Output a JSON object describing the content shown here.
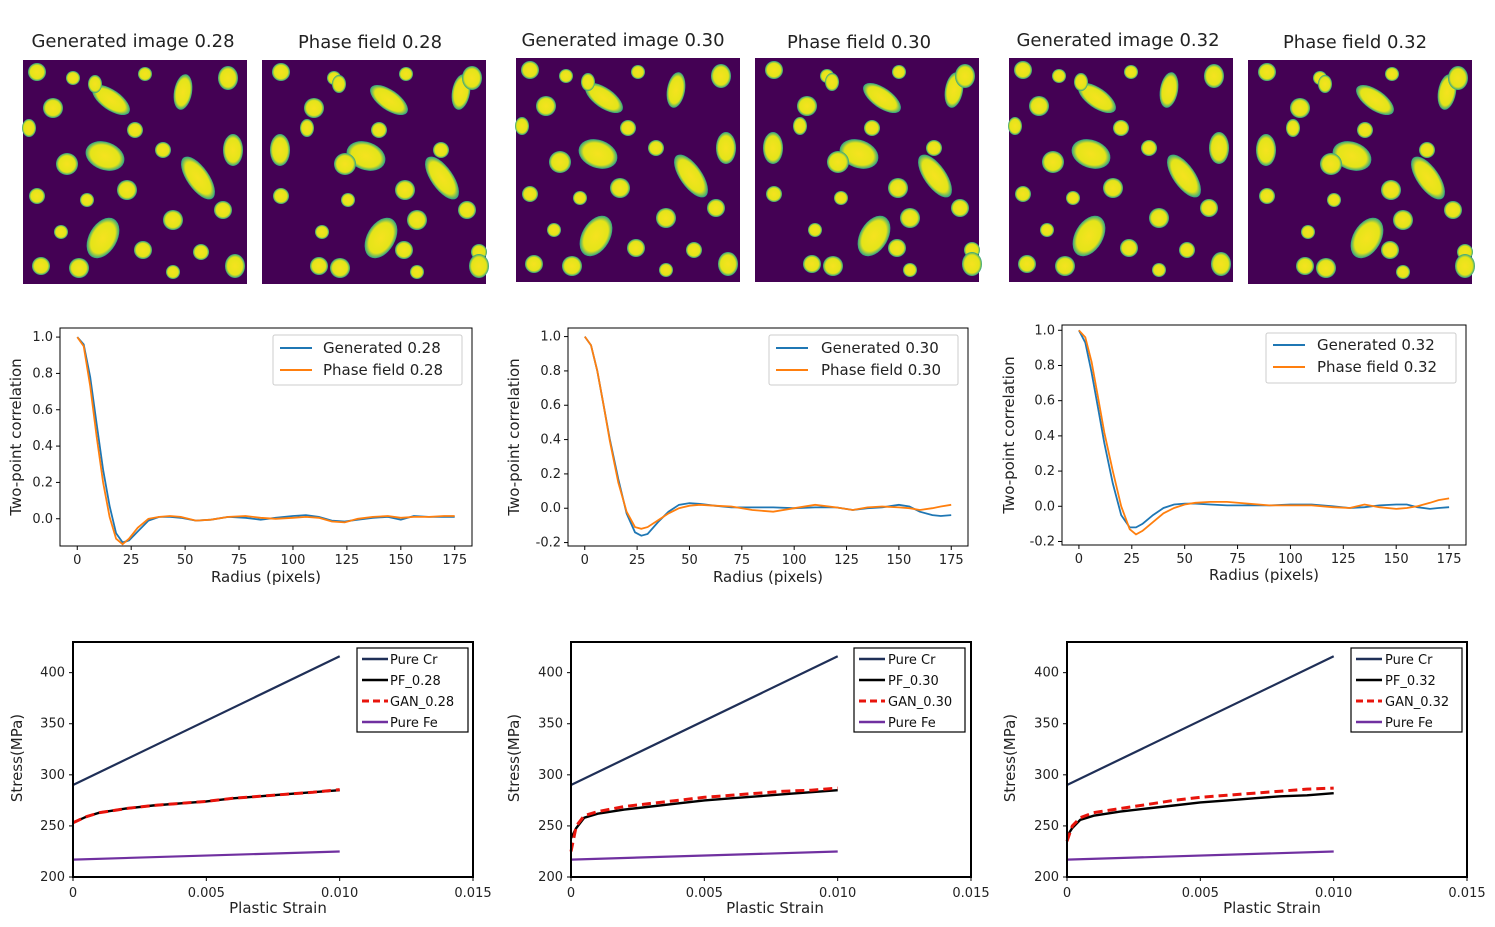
{
  "columns": [
    {
      "image_titles": [
        "Generated image 0.28",
        "Phase field 0.28"
      ],
      "corr": {
        "xlabel": "Radius (pixels)",
        "ylabel": "Two-point correlation",
        "ylim": [
          -0.15,
          1.05
        ],
        "xlim": [
          -8,
          183
        ],
        "yticks": [
          "1.0",
          "0.8",
          "0.6",
          "0.4",
          "0.2",
          "0.0"
        ],
        "xticks": [
          "0",
          "25",
          "50",
          "75",
          "100",
          "125",
          "150",
          "175"
        ],
        "legend": [
          "Generated 0.28",
          "Phase field 0.28"
        ]
      },
      "stress": {
        "xlabel": "Plastic Strain",
        "ylabel": "Stress(MPa)",
        "yticks": [
          "400",
          "350",
          "300",
          "250",
          "200"
        ],
        "xticks": [
          "0",
          "0.005",
          "0.010",
          "0.015"
        ],
        "legend": [
          "Pure Cr",
          "PF_0.28",
          "GAN_0.28",
          "Pure Fe"
        ]
      }
    },
    {
      "image_titles": [
        "Generated image 0.30",
        "Phase field 0.30"
      ],
      "corr": {
        "xlabel": "Radius (pixels)",
        "ylabel": "Two-point correlation",
        "ylim": [
          -0.22,
          1.05
        ],
        "xlim": [
          -8,
          183
        ],
        "yticks": [
          "1.0",
          "0.8",
          "0.6",
          "0.4",
          "0.2",
          "0.0",
          "-0.2"
        ],
        "xticks": [
          "0",
          "25",
          "50",
          "75",
          "100",
          "125",
          "150",
          "175"
        ],
        "legend": [
          "Generated 0.30",
          "Phase field 0.30"
        ]
      },
      "stress": {
        "xlabel": "Plastic Strain",
        "ylabel": "Stress(MPa)",
        "yticks": [
          "400",
          "350",
          "300",
          "250",
          "200"
        ],
        "xticks": [
          "0",
          "0.005",
          "0.010",
          "0.015"
        ],
        "legend": [
          "Pure Cr",
          "PF_0.30",
          "GAN_0.30",
          "Pure Fe"
        ]
      }
    },
    {
      "image_titles": [
        "Generated image 0.32",
        "Phase field 0.32"
      ],
      "corr": {
        "xlabel": "Radius (pixels)",
        "ylabel": "Two-point correlation",
        "ylim": [
          -0.22,
          1.03
        ],
        "xlim": [
          -8,
          183
        ],
        "yticks": [
          "1.0",
          "0.8",
          "0.6",
          "0.4",
          "0.2",
          "0.0",
          "-0.2"
        ],
        "xticks": [
          "0",
          "25",
          "50",
          "75",
          "100",
          "125",
          "150",
          "175"
        ],
        "legend": [
          "Generated 0.32",
          "Phase field 0.32"
        ]
      },
      "stress": {
        "xlabel": "Plastic Strain",
        "ylabel": "Stress(MPa)",
        "yticks": [
          "400",
          "350",
          "300",
          "250",
          "200"
        ],
        "xticks": [
          "0",
          "0.005",
          "0.010",
          "0.015"
        ],
        "legend": [
          "Pure Cr",
          "PF_0.32",
          "GAN_0.32",
          "Pure Fe"
        ]
      }
    }
  ],
  "chart_data": [
    {
      "type": "line",
      "title": "",
      "xlabel": "Radius (pixels)",
      "ylabel": "Two-point correlation",
      "ylim": [
        -0.15,
        1.05
      ],
      "series": [
        {
          "name": "Generated 0.28",
          "color": "#1f77b4",
          "x": [
            0,
            3,
            6,
            9,
            12,
            15,
            18,
            21,
            24,
            28,
            33,
            38,
            43,
            48,
            55,
            62,
            70,
            78,
            85,
            92,
            100,
            106,
            112,
            118,
            124,
            130,
            137,
            144,
            150,
            156,
            163,
            170,
            175
          ],
          "y": [
            1.0,
            0.96,
            0.78,
            0.52,
            0.27,
            0.07,
            -0.08,
            -0.13,
            -0.12,
            -0.07,
            -0.01,
            0.01,
            0.01,
            0.005,
            -0.01,
            -0.005,
            0.01,
            0.005,
            -0.005,
            0.005,
            0.015,
            0.02,
            0.01,
            -0.01,
            -0.015,
            -0.005,
            0.005,
            0.01,
            -0.005,
            0.015,
            0.01,
            0.01,
            0.01
          ]
        },
        {
          "name": "Phase field 0.28",
          "color": "#ff7f0e",
          "x": [
            0,
            3,
            6,
            9,
            12,
            15,
            18,
            21,
            24,
            28,
            33,
            38,
            43,
            48,
            55,
            62,
            70,
            78,
            85,
            92,
            100,
            106,
            112,
            118,
            124,
            130,
            137,
            144,
            150,
            156,
            163,
            170,
            175
          ],
          "y": [
            1.0,
            0.95,
            0.73,
            0.45,
            0.2,
            0.01,
            -0.11,
            -0.14,
            -0.11,
            -0.05,
            0.0,
            0.01,
            0.015,
            0.01,
            -0.01,
            -0.005,
            0.01,
            0.015,
            0.005,
            0.0,
            0.005,
            0.01,
            0.005,
            -0.015,
            -0.02,
            0.0,
            0.01,
            0.015,
            0.005,
            0.01,
            0.01,
            0.015,
            0.015
          ]
        }
      ]
    },
    {
      "type": "line",
      "title": "",
      "xlabel": "Radius (pixels)",
      "ylabel": "Two-point correlation",
      "ylim": [
        -0.22,
        1.05
      ],
      "series": [
        {
          "name": "Generated 0.30",
          "color": "#1f77b4",
          "x": [
            0,
            3,
            6,
            9,
            12,
            16,
            20,
            24,
            27,
            30,
            35,
            40,
            45,
            50,
            55,
            62,
            70,
            80,
            90,
            100,
            110,
            120,
            128,
            135,
            142,
            150,
            155,
            160,
            166,
            170,
            175
          ],
          "y": [
            1.0,
            0.95,
            0.8,
            0.6,
            0.4,
            0.17,
            -0.03,
            -0.14,
            -0.16,
            -0.15,
            -0.08,
            -0.02,
            0.02,
            0.03,
            0.025,
            0.015,
            0.005,
            0.005,
            0.005,
            0.0,
            0.005,
            0.005,
            -0.01,
            0.0,
            0.005,
            0.02,
            0.01,
            -0.02,
            -0.04,
            -0.045,
            -0.04
          ]
        },
        {
          "name": "Phase field 0.30",
          "color": "#ff7f0e",
          "x": [
            0,
            3,
            6,
            9,
            12,
            16,
            20,
            24,
            27,
            30,
            35,
            40,
            45,
            50,
            55,
            62,
            70,
            80,
            90,
            100,
            110,
            120,
            128,
            135,
            142,
            150,
            155,
            160,
            166,
            170,
            175
          ],
          "y": [
            1.0,
            0.95,
            0.8,
            0.6,
            0.39,
            0.15,
            -0.02,
            -0.11,
            -0.12,
            -0.11,
            -0.07,
            -0.03,
            0.0,
            0.015,
            0.02,
            0.015,
            0.01,
            -0.01,
            -0.02,
            0.0,
            0.02,
            0.005,
            -0.01,
            0.005,
            0.01,
            0.005,
            0.0,
            -0.01,
            0.0,
            0.01,
            0.02
          ]
        }
      ]
    },
    {
      "type": "line",
      "title": "",
      "xlabel": "Radius (pixels)",
      "ylabel": "Two-point correlation",
      "ylim": [
        -0.22,
        1.03
      ],
      "series": [
        {
          "name": "Generated 0.32",
          "color": "#1f77b4",
          "x": [
            0,
            3,
            6,
            9,
            12,
            16,
            20,
            24,
            27,
            30,
            35,
            40,
            45,
            50,
            55,
            62,
            70,
            80,
            90,
            100,
            110,
            120,
            128,
            135,
            142,
            150,
            155,
            160,
            166,
            170,
            175
          ],
          "y": [
            1.0,
            0.93,
            0.76,
            0.56,
            0.36,
            0.13,
            -0.05,
            -0.12,
            -0.12,
            -0.1,
            -0.05,
            -0.01,
            0.01,
            0.015,
            0.015,
            0.01,
            0.005,
            0.005,
            0.005,
            0.01,
            0.01,
            0.0,
            -0.01,
            -0.005,
            0.005,
            0.01,
            0.01,
            -0.005,
            -0.015,
            -0.01,
            -0.005
          ]
        },
        {
          "name": "Phase field 0.32",
          "color": "#ff7f0e",
          "x": [
            0,
            3,
            6,
            9,
            12,
            16,
            20,
            24,
            27,
            30,
            35,
            40,
            45,
            50,
            55,
            62,
            70,
            80,
            90,
            100,
            110,
            120,
            128,
            135,
            142,
            150,
            155,
            160,
            166,
            170,
            175
          ],
          "y": [
            1.0,
            0.96,
            0.82,
            0.62,
            0.42,
            0.2,
            0.0,
            -0.13,
            -0.16,
            -0.14,
            -0.09,
            -0.04,
            -0.01,
            0.01,
            0.02,
            0.025,
            0.025,
            0.015,
            0.005,
            0.005,
            0.005,
            -0.005,
            -0.01,
            0.01,
            -0.005,
            -0.015,
            -0.01,
            0.0,
            0.02,
            0.035,
            0.045
          ]
        }
      ]
    },
    {
      "type": "line",
      "title": "",
      "xlabel": "Plastic Strain",
      "ylabel": "Stress(MPa)",
      "xlim": [
        0,
        0.015
      ],
      "ylim": [
        200,
        430
      ],
      "series": [
        {
          "name": "Pure Cr",
          "color": "#1f2f57",
          "x": [
            0,
            0.01
          ],
          "y": [
            290,
            416
          ]
        },
        {
          "name": "PF_0.28",
          "color": "#000000",
          "x": [
            0,
            0.0005,
            0.001,
            0.0015,
            0.002,
            0.003,
            0.004,
            0.005,
            0.006,
            0.007,
            0.008,
            0.009,
            0.01
          ],
          "y": [
            253,
            259,
            263,
            265,
            267,
            270,
            272,
            274,
            277,
            279,
            281,
            283,
            285
          ]
        },
        {
          "name": "GAN_0.28",
          "color": "#e8140c",
          "dashed": true,
          "x": [
            0,
            0.0005,
            0.001,
            0.0015,
            0.002,
            0.003,
            0.004,
            0.005,
            0.006,
            0.007,
            0.008,
            0.009,
            0.01
          ],
          "y": [
            253,
            259,
            263,
            265,
            267,
            270,
            272,
            274,
            277,
            279,
            281,
            283,
            285.5
          ]
        },
        {
          "name": "Pure Fe",
          "color": "#7030a0",
          "x": [
            0,
            0.01
          ],
          "y": [
            217,
            225
          ]
        }
      ]
    },
    {
      "type": "line",
      "title": "",
      "xlabel": "Plastic Strain",
      "ylabel": "Stress(MPa)",
      "xlim": [
        0,
        0.015
      ],
      "ylim": [
        200,
        430
      ],
      "series": [
        {
          "name": "Pure Cr",
          "color": "#1f2f57",
          "x": [
            0,
            0.01
          ],
          "y": [
            290,
            416
          ]
        },
        {
          "name": "PF_0.30",
          "color": "#000000",
          "x": [
            0,
            0.0002,
            0.0005,
            0.001,
            0.002,
            0.003,
            0.004,
            0.005,
            0.006,
            0.007,
            0.008,
            0.009,
            0.01
          ],
          "y": [
            238,
            248,
            258,
            262,
            266,
            269,
            272,
            275,
            277,
            279,
            281,
            283,
            285
          ]
        },
        {
          "name": "GAN_0.30",
          "color": "#e8140c",
          "dashed": true,
          "x": [
            0,
            0.0002,
            0.0005,
            0.001,
            0.002,
            0.003,
            0.004,
            0.005,
            0.006,
            0.007,
            0.008,
            0.009,
            0.01
          ],
          "y": [
            225,
            250,
            260,
            264,
            269,
            272,
            275,
            278,
            280,
            282,
            284,
            285,
            287
          ]
        },
        {
          "name": "Pure Fe",
          "color": "#7030a0",
          "x": [
            0,
            0.01
          ],
          "y": [
            217,
            225
          ]
        }
      ]
    },
    {
      "type": "line",
      "title": "",
      "xlabel": "Plastic Strain",
      "ylabel": "Stress(MPa)",
      "xlim": [
        0,
        0.015
      ],
      "ylim": [
        200,
        430
      ],
      "series": [
        {
          "name": "Pure Cr",
          "color": "#1f2f57",
          "x": [
            0,
            0.01
          ],
          "y": [
            290,
            416
          ]
        },
        {
          "name": "PF_0.32",
          "color": "#000000",
          "x": [
            0,
            0.0002,
            0.0005,
            0.001,
            0.002,
            0.003,
            0.004,
            0.005,
            0.006,
            0.007,
            0.008,
            0.009,
            0.01
          ],
          "y": [
            240,
            248,
            256,
            260,
            264,
            267,
            270,
            273,
            275,
            277,
            279,
            280,
            282
          ]
        },
        {
          "name": "GAN_0.32",
          "color": "#e8140c",
          "dashed": true,
          "x": [
            0,
            0.0002,
            0.0005,
            0.001,
            0.002,
            0.003,
            0.004,
            0.005,
            0.006,
            0.007,
            0.008,
            0.009,
            0.01
          ],
          "y": [
            235,
            250,
            258,
            263,
            267,
            271,
            275,
            278,
            280,
            282,
            284,
            286,
            287
          ]
        },
        {
          "name": "Pure Fe",
          "color": "#7030a0",
          "x": [
            0,
            0.01
          ],
          "y": [
            217,
            225
          ]
        }
      ]
    }
  ]
}
